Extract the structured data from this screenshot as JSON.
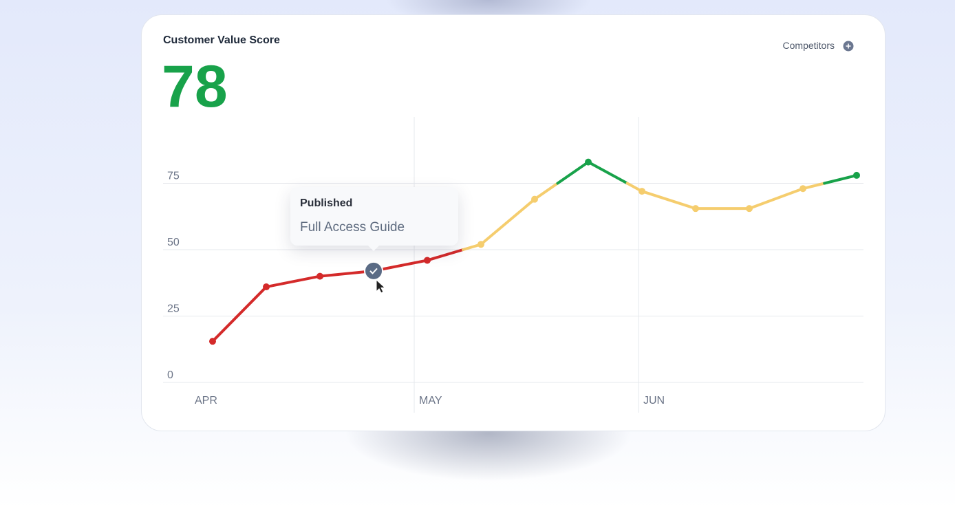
{
  "chart_data": {
    "type": "line",
    "title": "Customer Value Score",
    "score": 78,
    "button": "Competitors",
    "categories": [
      null,
      null,
      null,
      null,
      null,
      null,
      null,
      null,
      null,
      null,
      null,
      null,
      null
    ],
    "months": [
      "APR",
      "MAY",
      "JUN"
    ],
    "values": [
      15.5,
      36,
      40,
      42,
      46,
      52,
      69,
      83,
      72,
      65.5,
      65.5,
      73,
      78
    ],
    "thresholds": [
      50,
      75
    ],
    "colors": [
      "#d42a2a",
      "#f5cd6e",
      "#18a24a"
    ],
    "ylim": [
      0,
      100
    ],
    "yticks": [
      0,
      25,
      50,
      75
    ],
    "grid": true,
    "annotation": {
      "title": "Published",
      "text": "Full Access Guide"
    }
  }
}
